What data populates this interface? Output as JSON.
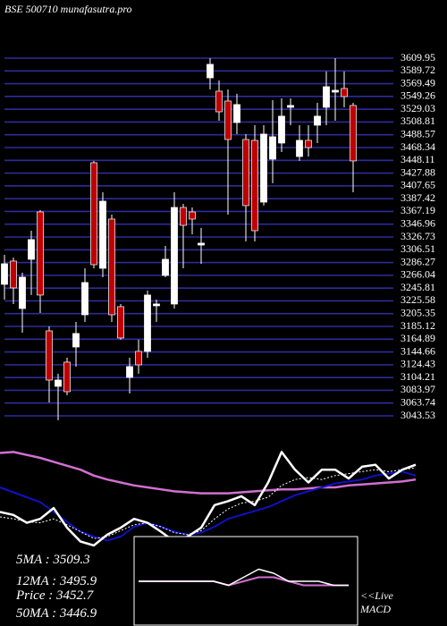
{
  "title": "BSE 500710 munafasutra.pro",
  "stats": [
    "5MA : 3509.3",
    "12MA : 3495.9",
    "Price : 3452.7",
    "50MA : 3446.9"
  ],
  "macd_label": [
    "<<Live",
    "MACD"
  ],
  "chart_data": [
    {
      "type": "candlestick",
      "ylim": [
        3043.53,
        3609.95
      ],
      "grid": true,
      "grid_color": "#2c2c9a",
      "up_color": "#ffffff",
      "down_color": "#c00000",
      "yticks": [
        3609.95,
        3589.72,
        3569.49,
        3549.26,
        3529.03,
        3508.81,
        3488.57,
        3468.34,
        3448.11,
        3427.88,
        3407.65,
        3387.42,
        3367.19,
        3346.96,
        3326.73,
        3306.51,
        3286.27,
        3266.04,
        3245.81,
        3225.58,
        3205.35,
        3185.12,
        3164.89,
        3144.66,
        3124.43,
        3104.21,
        3083.97,
        3063.74,
        3043.53
      ],
      "open": [
        3251.8,
        3288.6,
        3213.5,
        3291.4,
        3366.4,
        3178.1,
        3090.3,
        3128.6,
        3152.6,
        3203.6,
        3444.3,
        3277.2,
        3355.1,
        3216.4,
        3104.5,
        3145.6,
        3145.6,
        3217.8,
        3265.9,
        3220.6,
        3373.5,
        3366.4,
        3314,
        3578.8,
        3557.6,
        3542,
        3508,
        3481.1,
        3479.7,
        3382,
        3450,
        3475.5,
        3532.1,
        3454.2,
        3479.7,
        3503.8,
        3532.1,
        3556.2,
        3561.9,
        3535
      ],
      "high": [
        3298.5,
        3294.2,
        3270.2,
        3336.7,
        3369.3,
        3185.2,
        3110.2,
        3135.6,
        3192.3,
        3277.2,
        3447.2,
        3397.6,
        3362.2,
        3220.6,
        3135.6,
        3164,
        3241.8,
        3227.7,
        3312.6,
        3397.6,
        3379.2,
        3373.5,
        3341,
        3610,
        3574.6,
        3560.4,
        3553.4,
        3489.6,
        3503.8,
        3503.8,
        3543.4,
        3546.3,
        3546.3,
        3503.8,
        3503.8,
        3539.2,
        3588.8,
        3610,
        3588.8,
        3539.2
      ],
      "low": [
        3227.7,
        3220.6,
        3175.3,
        3234.8,
        3206.4,
        3064.8,
        3036.5,
        3076.2,
        3121.5,
        3192.3,
        3277.2,
        3263.1,
        3192.3,
        3164,
        3079,
        3110.2,
        3135.6,
        3192.3,
        3263.1,
        3213.5,
        3277.2,
        3331,
        3284.3,
        3560.4,
        3510.9,
        3362.2,
        3489.6,
        3319.7,
        3319.7,
        3376.4,
        3411.8,
        3461.3,
        3503.8,
        3447.2,
        3454.2,
        3475.5,
        3503.8,
        3510.9,
        3532.1,
        3397.6
      ],
      "close": [
        3284.3,
        3246.1,
        3263.1,
        3322.6,
        3234.8,
        3100.2,
        3100.2,
        3081.8,
        3173.9,
        3254.6,
        3282.9,
        3383.4,
        3203.6,
        3166.8,
        3121.5,
        3124.3,
        3234.8,
        3220.6,
        3291.4,
        3373.5,
        3345.2,
        3355.1,
        3316.9,
        3600.1,
        3525,
        3481.1,
        3536.4,
        3376.4,
        3336.7,
        3489.6,
        3485.4,
        3518,
        3535,
        3479.7,
        3468.4,
        3518,
        3564.7,
        3559,
        3549.1,
        3447.2
      ]
    },
    {
      "type": "line",
      "ylim": [
        0,
        100
      ],
      "series": [
        {
          "color": "#d070d0",
          "width": 2.5,
          "values": [
            85,
            86,
            83,
            80,
            76,
            72,
            68,
            62,
            58,
            55,
            52,
            50,
            48,
            46,
            45,
            44,
            44,
            44,
            45,
            46,
            47,
            48,
            48,
            49,
            50,
            50,
            52,
            53,
            54,
            55,
            56,
            58
          ]
        },
        {
          "color": "#1010c8",
          "width": 2,
          "values": [
            50,
            45,
            40,
            35,
            25,
            15,
            5,
            0,
            -4,
            0,
            10,
            14,
            10,
            5,
            2,
            4,
            10,
            18,
            22,
            26,
            30,
            36,
            42,
            46,
            50,
            54,
            56,
            58,
            62,
            64,
            66,
            62
          ]
        },
        {
          "color": "#ffffff",
          "width": 1,
          "dash": true,
          "values": [
            20,
            18,
            15,
            14,
            18,
            12,
            5,
            -2,
            0,
            6,
            12,
            14,
            10,
            4,
            2,
            6,
            18,
            28,
            34,
            36,
            40,
            52,
            58,
            60,
            58,
            62,
            64,
            66,
            68,
            66,
            68,
            70
          ]
        },
        {
          "color": "#ffffff",
          "width": 2.5,
          "values": [
            25,
            22,
            14,
            18,
            29,
            9,
            -5,
            -9,
            2,
            9,
            18,
            14,
            5,
            -5,
            0,
            9,
            32,
            36,
            41,
            32,
            55,
            86,
            68,
            55,
            68,
            68,
            59,
            71,
            73,
            59,
            68,
            73
          ]
        }
      ]
    },
    {
      "type": "line",
      "ylim": [
        -10,
        10
      ],
      "series": [
        {
          "color": "#d070d0",
          "width": 2,
          "values": [
            0,
            0,
            0,
            0,
            0,
            0,
            -1,
            0,
            1,
            1,
            0,
            -1,
            -1,
            -1,
            -1
          ]
        },
        {
          "color": "#ffffff",
          "width": 1.5,
          "values": [
            0,
            0,
            0,
            0,
            0,
            0,
            -1,
            1,
            3,
            2,
            0,
            0,
            0,
            -1,
            -1
          ]
        }
      ]
    }
  ]
}
